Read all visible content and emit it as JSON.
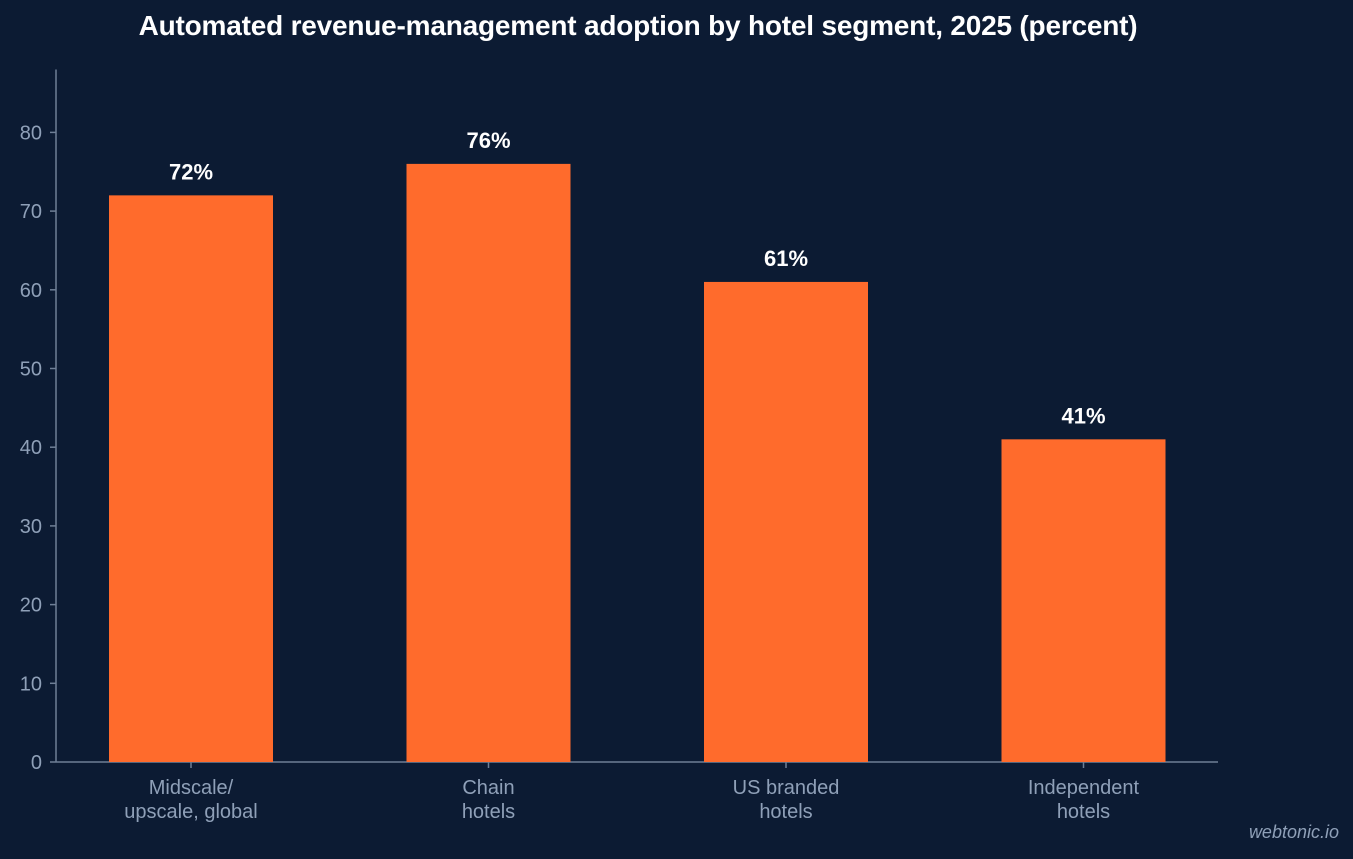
{
  "chart_data": {
    "type": "bar",
    "title": "Automated revenue-management adoption by hotel segment, 2025 (percent)",
    "categories": [
      [
        "Midscale/",
        "upscale, global"
      ],
      [
        "Chain",
        "hotels"
      ],
      [
        "US branded",
        "hotels"
      ],
      [
        "Independent",
        "hotels"
      ]
    ],
    "values": [
      72,
      76,
      61,
      41
    ],
    "data_labels": [
      "72%",
      "76%",
      "61%",
      "41%"
    ],
    "ylim": [
      0,
      88
    ],
    "yticks": [
      0,
      10,
      20,
      30,
      40,
      50,
      60,
      70,
      80
    ],
    "xlabel": "",
    "ylabel": "",
    "grid": false,
    "legend": "none",
    "bar_color": "#ff6b2c"
  },
  "watermark": "webtonic.io"
}
